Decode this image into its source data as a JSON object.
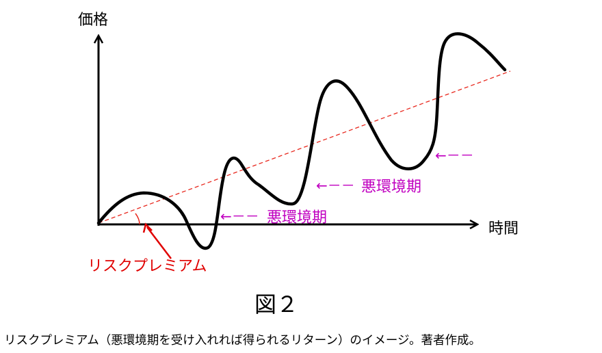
{
  "diagram": {
    "y_axis_label": "価格",
    "x_axis_label": "時間",
    "risk_premium_label": "リスクプレミアム",
    "bad_period_label": "悪環境期",
    "arrow_label": "←－－",
    "figure_number": "図２",
    "caption": "リスクプレミアム（悪環境期を受け入れれば得られるリターン）のイメージ。著者作成。"
  },
  "colors": {
    "curve": "#000000",
    "trend_line": "#e8281e",
    "risk_premium": "#e00000",
    "bad_period": "#c000c0"
  }
}
